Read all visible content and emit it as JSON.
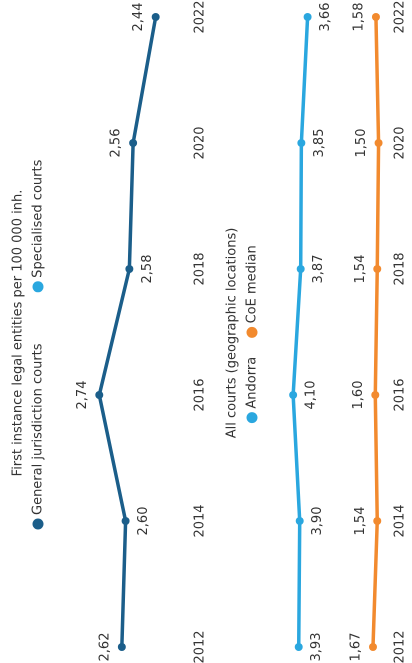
{
  "chart_data": [
    {
      "type": "line",
      "title": "First instance legal entities per 100 000 inh.",
      "categories": [
        "2012",
        "2014",
        "2016",
        "2018",
        "2020",
        "2022"
      ],
      "series": [
        {
          "name": "General jurisdiction courts",
          "color": "#1b5e8a",
          "values": [
            2.62,
            2.6,
            2.74,
            2.58,
            2.56,
            2.44
          ],
          "value_labels": [
            "2,62",
            "2,60",
            "2,74",
            "2,58",
            "2,56",
            "2,44"
          ],
          "label_side": [
            "above",
            "below",
            "above",
            "below",
            "above",
            "above"
          ]
        },
        {
          "name": "Specialised courts",
          "color": "#2aa7df"
        }
      ],
      "ylim": [
        2.3,
        2.8
      ]
    },
    {
      "type": "line",
      "title": "All courts (geographic locations)",
      "categories": [
        "2012",
        "2014",
        "2016",
        "2018",
        "2020",
        "2022"
      ],
      "series": [
        {
          "name": "Andorra",
          "color": "#2aa7df",
          "values": [
            3.93,
            3.9,
            4.1,
            3.87,
            3.85,
            3.66
          ],
          "value_labels": [
            "3,93",
            "3,90",
            "4,10",
            "3,87",
            "3,85",
            "3,66"
          ],
          "label_side": [
            "below",
            "below",
            "below",
            "below",
            "below",
            "below"
          ]
        },
        {
          "name": "CoE median",
          "color": "#f28a2e",
          "values": [
            1.67,
            1.54,
            1.6,
            1.54,
            1.5,
            1.58
          ],
          "value_labels": [
            "1,67",
            "1,54",
            "1,60",
            "1,54",
            "1,50",
            "1,58"
          ],
          "label_side": [
            "above",
            "above",
            "above",
            "above",
            "above",
            "above"
          ]
        }
      ],
      "ylim": [
        1.0,
        4.5
      ]
    }
  ]
}
